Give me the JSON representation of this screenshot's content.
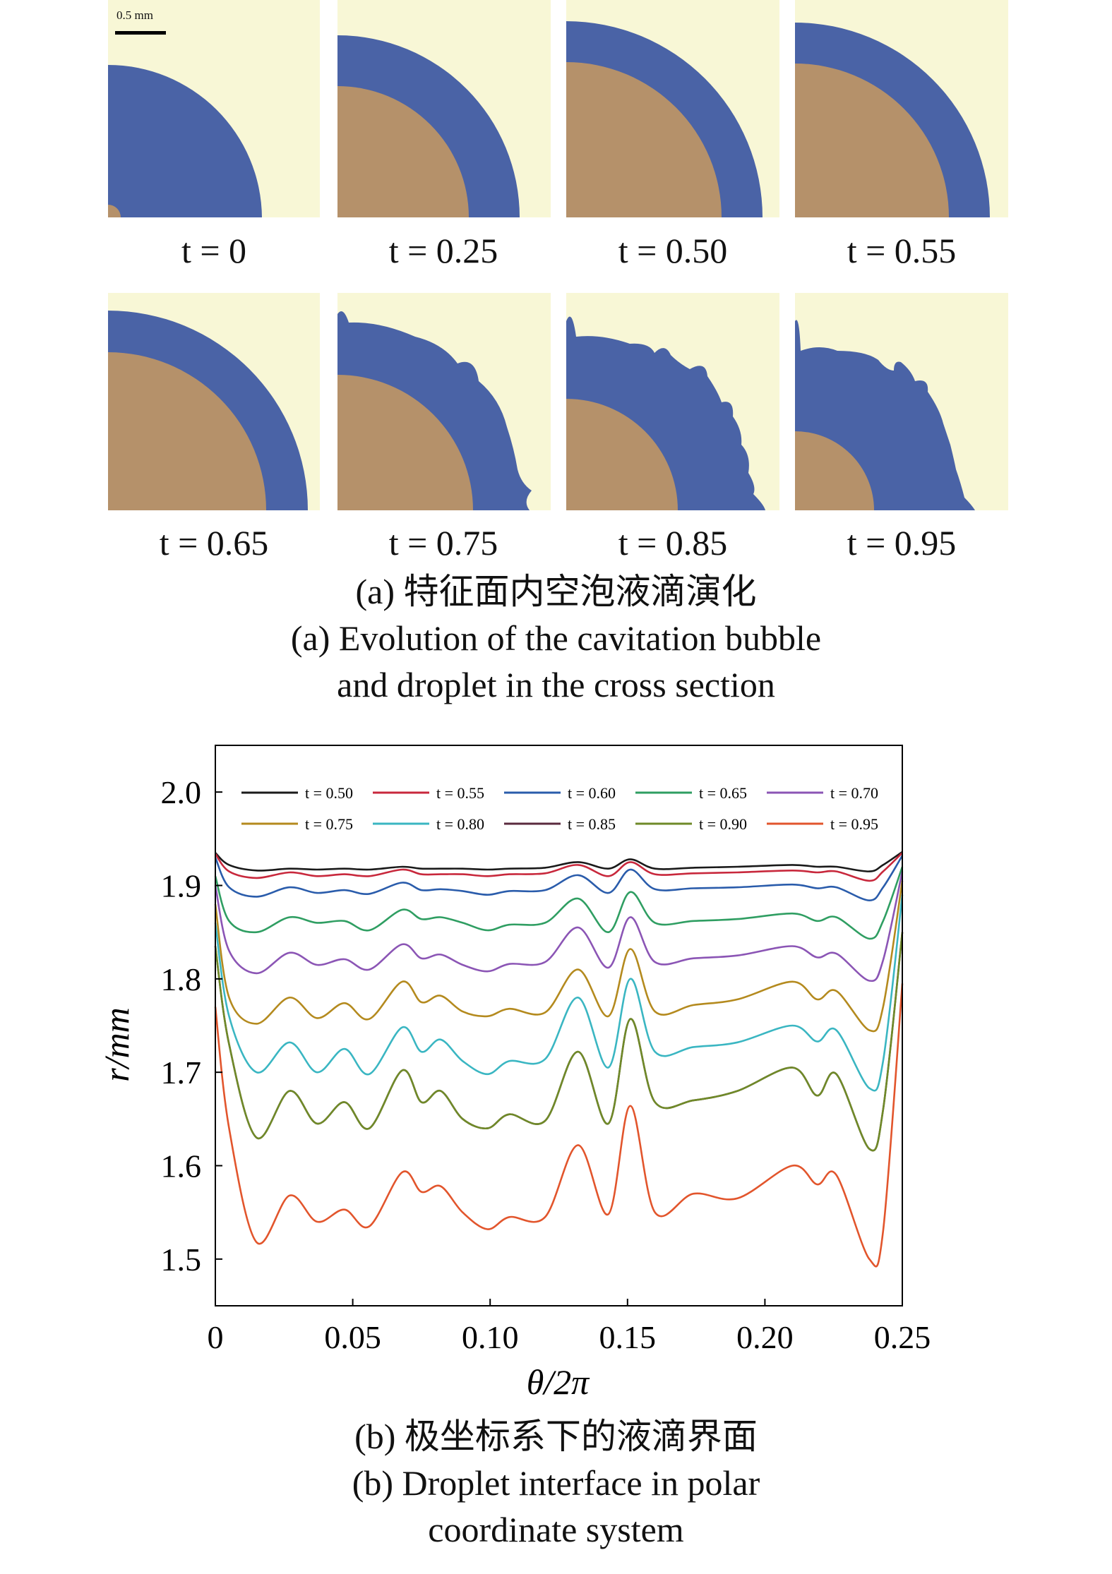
{
  "panel_a": {
    "scalebar_label": "0.5 mm",
    "frames": [
      {
        "t": "t = 0"
      },
      {
        "t": "t = 0.25"
      },
      {
        "t": "t = 0.50"
      },
      {
        "t": "t = 0.55"
      },
      {
        "t": "t = 0.65"
      },
      {
        "t": "t = 0.75"
      },
      {
        "t": "t = 0.85"
      },
      {
        "t": "t = 0.95"
      }
    ],
    "caption_cn": "(a) 特征面内空泡液滴演化",
    "caption_en_1": "(a) Evolution of the cavitation bubble",
    "caption_en_2": "and droplet in the cross section",
    "colors": {
      "background": "#f8f7d6",
      "bubble": "#4a63a6",
      "droplet": "#b5916a"
    }
  },
  "panel_b": {
    "caption_cn": "(b) 极坐标系下的液滴界面",
    "caption_en_1": "(b) Droplet interface in polar",
    "caption_en_2": "coordinate system"
  },
  "chart_data": {
    "type": "line",
    "title": "",
    "xlabel": "θ/2π",
    "ylabel": "r/mm",
    "xlim": [
      0,
      0.25
    ],
    "ylim": [
      1.45,
      2.05
    ],
    "xticks": [
      0,
      0.05,
      0.1,
      0.15,
      0.2,
      0.25
    ],
    "xtick_labels": [
      "0",
      "0.05",
      "0.10",
      "0.15",
      "0.20",
      "0.25"
    ],
    "yticks": [
      1.5,
      1.6,
      1.7,
      1.8,
      1.9,
      2.0
    ],
    "ytick_labels": [
      "1.5",
      "1.6",
      "1.7",
      "1.8",
      "1.9",
      "2.0"
    ],
    "legend_position": "top, two rows",
    "x": [
      0,
      0.005,
      0.015,
      0.027,
      0.037,
      0.047,
      0.056,
      0.068,
      0.075,
      0.082,
      0.09,
      0.099,
      0.107,
      0.12,
      0.132,
      0.143,
      0.151,
      0.16,
      0.174,
      0.19,
      0.21,
      0.219,
      0.226,
      0.238,
      0.243,
      0.25
    ],
    "series": [
      {
        "name": "t = 0.50",
        "color": "#1a1a1a",
        "values": [
          1.935,
          1.922,
          1.916,
          1.918,
          1.917,
          1.918,
          1.917,
          1.92,
          1.918,
          1.918,
          1.918,
          1.917,
          1.918,
          1.919,
          1.925,
          1.918,
          1.928,
          1.918,
          1.919,
          1.92,
          1.922,
          1.92,
          1.92,
          1.915,
          1.922,
          1.936
        ]
      },
      {
        "name": "t = 0.55",
        "color": "#c8283c",
        "values": [
          1.934,
          1.915,
          1.908,
          1.914,
          1.91,
          1.912,
          1.91,
          1.917,
          1.912,
          1.912,
          1.912,
          1.91,
          1.912,
          1.913,
          1.922,
          1.91,
          1.925,
          1.912,
          1.913,
          1.914,
          1.916,
          1.914,
          1.915,
          1.905,
          1.915,
          1.935
        ]
      },
      {
        "name": "t = 0.60",
        "color": "#2a5cab",
        "values": [
          1.93,
          1.898,
          1.888,
          1.898,
          1.892,
          1.895,
          1.891,
          1.903,
          1.895,
          1.896,
          1.894,
          1.89,
          1.894,
          1.895,
          1.911,
          1.892,
          1.917,
          1.896,
          1.897,
          1.898,
          1.901,
          1.897,
          1.898,
          1.884,
          1.898,
          1.932
        ]
      },
      {
        "name": "t = 0.65",
        "color": "#2f9e62",
        "values": [
          1.91,
          1.862,
          1.85,
          1.866,
          1.86,
          1.862,
          1.852,
          1.874,
          1.864,
          1.866,
          1.86,
          1.852,
          1.858,
          1.86,
          1.886,
          1.85,
          1.893,
          1.86,
          1.862,
          1.864,
          1.87,
          1.862,
          1.866,
          1.843,
          1.862,
          1.92
        ]
      },
      {
        "name": "t = 0.70",
        "color": "#8b55b5",
        "values": [
          1.9,
          1.83,
          1.806,
          1.828,
          1.815,
          1.821,
          1.81,
          1.837,
          1.822,
          1.826,
          1.815,
          1.808,
          1.816,
          1.818,
          1.855,
          1.812,
          1.866,
          1.818,
          1.822,
          1.825,
          1.835,
          1.823,
          1.827,
          1.798,
          1.82,
          1.915
        ]
      },
      {
        "name": "t = 0.75",
        "color": "#b48a1e",
        "values": [
          1.88,
          1.78,
          1.752,
          1.78,
          1.758,
          1.774,
          1.757,
          1.797,
          1.775,
          1.782,
          1.765,
          1.76,
          1.768,
          1.764,
          1.81,
          1.76,
          1.832,
          1.765,
          1.772,
          1.778,
          1.797,
          1.778,
          1.787,
          1.745,
          1.77,
          1.905
        ]
      },
      {
        "name": "t = 0.80",
        "color": "#3ab6c2",
        "values": [
          1.86,
          1.76,
          1.7,
          1.732,
          1.7,
          1.725,
          1.698,
          1.748,
          1.722,
          1.735,
          1.712,
          1.698,
          1.712,
          1.714,
          1.78,
          1.705,
          1.8,
          1.722,
          1.727,
          1.732,
          1.75,
          1.733,
          1.745,
          1.683,
          1.712,
          1.89
        ]
      },
      {
        "name": "t = 0.85",
        "color": "#5a2a3e",
        "values": [
          1.835,
          1.73,
          1.63,
          1.68,
          1.645,
          1.668,
          1.64,
          1.702,
          1.668,
          1.68,
          1.65,
          1.64,
          1.655,
          1.648,
          1.722,
          1.645,
          1.757,
          1.668,
          1.67,
          1.68,
          1.705,
          1.675,
          1.698,
          1.618,
          1.66,
          1.85
        ]
      },
      {
        "name": "t = 0.90",
        "color": "#6f8a28",
        "values": [
          1.835,
          1.73,
          1.63,
          1.68,
          1.645,
          1.668,
          1.64,
          1.702,
          1.668,
          1.68,
          1.65,
          1.64,
          1.655,
          1.648,
          1.722,
          1.645,
          1.757,
          1.668,
          1.67,
          1.68,
          1.705,
          1.675,
          1.698,
          1.618,
          1.66,
          1.85
        ]
      },
      {
        "name": "t = 0.95",
        "color": "#e2552c",
        "values": [
          1.77,
          1.64,
          1.518,
          1.568,
          1.54,
          1.553,
          1.535,
          1.593,
          1.572,
          1.578,
          1.55,
          1.532,
          1.545,
          1.545,
          1.622,
          1.548,
          1.664,
          1.55,
          1.57,
          1.565,
          1.6,
          1.58,
          1.59,
          1.5,
          1.53,
          1.795
        ]
      }
    ]
  }
}
